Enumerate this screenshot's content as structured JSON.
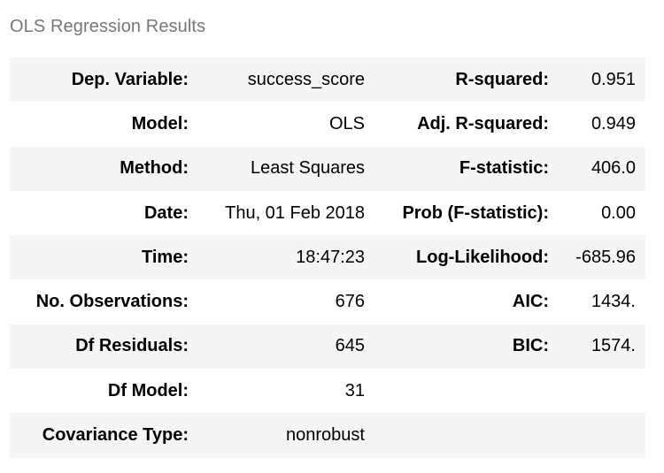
{
  "caption": "OLS Regression Results",
  "rows": [
    {
      "left_label": "Dep. Variable:",
      "left_value": "success_score",
      "right_label": "R-squared:",
      "right_value": "0.951"
    },
    {
      "left_label": "Model:",
      "left_value": "OLS",
      "right_label": "Adj. R-squared:",
      "right_value": "0.949"
    },
    {
      "left_label": "Method:",
      "left_value": "Least Squares",
      "right_label": "F-statistic:",
      "right_value": "406.0"
    },
    {
      "left_label": "Date:",
      "left_value": "Thu, 01 Feb 2018",
      "right_label": "Prob (F-statistic):",
      "right_value": "0.00"
    },
    {
      "left_label": "Time:",
      "left_value": "18:47:23",
      "right_label": "Log-Likelihood:",
      "right_value": "-685.96"
    },
    {
      "left_label": "No. Observations:",
      "left_value": "676",
      "right_label": "AIC:",
      "right_value": "1434."
    },
    {
      "left_label": "Df Residuals:",
      "left_value": "645",
      "right_label": "BIC:",
      "right_value": "1574."
    },
    {
      "left_label": "Df Model:",
      "left_value": "31",
      "right_label": "",
      "right_value": ""
    },
    {
      "left_label": "Covariance Type:",
      "left_value": "nonrobust",
      "right_label": "",
      "right_value": ""
    }
  ]
}
